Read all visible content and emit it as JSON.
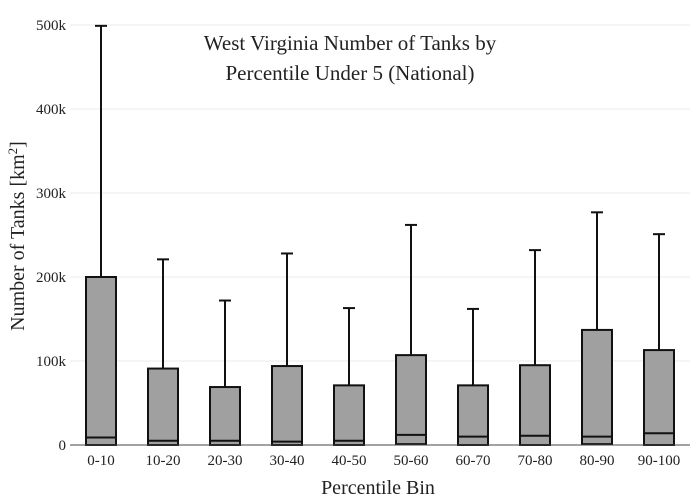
{
  "chart_data": {
    "type": "box",
    "title": [
      "West Virginia Number of Tanks by",
      "Percentile Under 5 (National)"
    ],
    "xlabel": "Percentile Bin",
    "ylabel": "Number of Tanks  [km",
    "ylabel_sup": "2",
    "ylabel_suffix": "]",
    "ylim": [
      0,
      500000
    ],
    "yticks": [
      0,
      100000,
      200000,
      300000,
      400000,
      500000
    ],
    "ytick_labels": [
      "0",
      "100k",
      "200k",
      "300k",
      "400k",
      "500k"
    ],
    "grid": true,
    "categories": [
      "0-10",
      "10-20",
      "20-30",
      "30-40",
      "40-50",
      "50-60",
      "60-70",
      "70-80",
      "80-90",
      "90-100"
    ],
    "boxes": [
      {
        "whisker_low": 0,
        "q1": 0,
        "median": 9000,
        "q3": 200000,
        "whisker_high": 499000
      },
      {
        "whisker_low": 0,
        "q1": 0,
        "median": 5000,
        "q3": 91000,
        "whisker_high": 221000
      },
      {
        "whisker_low": 0,
        "q1": 0,
        "median": 5000,
        "q3": 69000,
        "whisker_high": 172000
      },
      {
        "whisker_low": 0,
        "q1": 0,
        "median": 4000,
        "q3": 94000,
        "whisker_high": 228000
      },
      {
        "whisker_low": 0,
        "q1": 0,
        "median": 5000,
        "q3": 71000,
        "whisker_high": 163000
      },
      {
        "whisker_low": 0,
        "q1": 1000,
        "median": 12000,
        "q3": 107000,
        "whisker_high": 262000
      },
      {
        "whisker_low": 0,
        "q1": 0,
        "median": 10000,
        "q3": 71000,
        "whisker_high": 162000
      },
      {
        "whisker_low": 0,
        "q1": 0,
        "median": 11000,
        "q3": 95000,
        "whisker_high": 232000
      },
      {
        "whisker_low": 0,
        "q1": 1000,
        "median": 10000,
        "q3": 137000,
        "whisker_high": 277000
      },
      {
        "whisker_low": 0,
        "q1": 0,
        "median": 14000,
        "q3": 113000,
        "whisker_high": 251000
      }
    ]
  }
}
